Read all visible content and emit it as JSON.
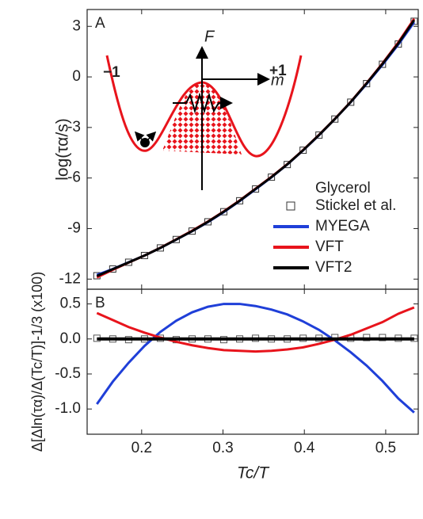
{
  "chart_data": [
    {
      "type": "line",
      "label": "A",
      "ylabel": "log(τα/s)",
      "xlim": [
        0.133,
        0.54
      ],
      "xticks": [
        0.2,
        0.3,
        0.4,
        0.5
      ],
      "ylim": [
        -12.6,
        4.0
      ],
      "yticks": [
        3,
        0,
        -3,
        -6,
        -9,
        -12
      ],
      "x": [
        0.145,
        0.1645,
        0.184,
        0.2035,
        0.223,
        0.2425,
        0.262,
        0.2815,
        0.301,
        0.3205,
        0.34,
        0.3595,
        0.379,
        0.3985,
        0.418,
        0.4375,
        0.457,
        0.4765,
        0.496,
        0.5155,
        0.535
      ],
      "legend_title": "Glycerol",
      "series": [
        {
          "name": "Stickel et al.",
          "marker": "square",
          "color": "#333333",
          "values": [
            -11.8,
            -11.4,
            -11.0,
            -10.6,
            -10.15,
            -9.65,
            -9.15,
            -8.6,
            -8.0,
            -7.35,
            -6.65,
            -5.95,
            -5.2,
            -4.35,
            -3.45,
            -2.5,
            -1.5,
            -0.4,
            0.75,
            1.95,
            3.3
          ]
        },
        {
          "name": "MYEGA",
          "color": "#1f3fd8",
          "values": [
            -11.75,
            -11.4,
            -11.0,
            -10.6,
            -10.15,
            -9.66,
            -9.16,
            -8.62,
            -8.02,
            -7.37,
            -6.67,
            -5.96,
            -5.2,
            -4.36,
            -3.46,
            -2.5,
            -1.5,
            -0.42,
            0.72,
            1.92,
            3.25
          ]
        },
        {
          "name": "VFT",
          "color": "#e8141c",
          "values": [
            -11.9,
            -11.45,
            -11.02,
            -10.6,
            -10.14,
            -9.64,
            -9.13,
            -8.58,
            -7.98,
            -7.33,
            -6.63,
            -5.93,
            -5.18,
            -4.34,
            -3.44,
            -2.49,
            -1.48,
            -0.37,
            0.8,
            2.05,
            3.45
          ]
        },
        {
          "name": "VFT2",
          "color": "#000000",
          "values": [
            -11.82,
            -11.41,
            -11.01,
            -10.6,
            -10.15,
            -9.65,
            -9.15,
            -8.6,
            -8.0,
            -7.35,
            -6.65,
            -5.95,
            -5.19,
            -4.35,
            -3.45,
            -2.5,
            -1.49,
            -0.39,
            0.77,
            1.99,
            3.37
          ]
        }
      ],
      "annotations": [
        "F",
        "m",
        "−1",
        "+1"
      ]
    },
    {
      "type": "line",
      "label": "B",
      "ylabel": "Δ[Δln(τα)/Δ(Tc/T)]-1/3 (x100)",
      "xlabel": "Tc/T",
      "xlim": [
        0.133,
        0.54
      ],
      "xticks": [
        0.2,
        0.3,
        0.4,
        0.5
      ],
      "ylim": [
        -1.36,
        0.71
      ],
      "yticks": [
        0.5,
        {
          "value": 0,
          "label": "0.0"
        },
        -0.5,
        {
          "value": -1,
          "label": "-1.0"
        }
      ],
      "x": [
        0.145,
        0.1645,
        0.184,
        0.2035,
        0.223,
        0.2425,
        0.262,
        0.2815,
        0.301,
        0.3205,
        0.34,
        0.3595,
        0.379,
        0.3985,
        0.418,
        0.4375,
        0.457,
        0.4765,
        0.496,
        0.5155,
        0.535
      ],
      "series": [
        {
          "marker": "square",
          "color": "#555555",
          "values": [
            0.01,
            0.0,
            -0.01,
            0.0,
            0.01,
            -0.01,
            0.0,
            0.0,
            -0.01,
            0.0,
            0.01,
            0.0,
            0.0,
            0.01,
            0.01,
            0.02,
            0.01,
            0.02,
            0.02,
            0.01,
            0.01
          ]
        },
        {
          "color": "#1f3fd8",
          "values": [
            -0.93,
            -0.61,
            -0.34,
            -0.1,
            0.1,
            0.26,
            0.38,
            0.46,
            0.5,
            0.5,
            0.47,
            0.42,
            0.35,
            0.25,
            0.13,
            -0.02,
            -0.19,
            -0.38,
            -0.6,
            -0.85,
            -1.05
          ]
        },
        {
          "color": "#e8141c",
          "values": [
            0.37,
            0.27,
            0.17,
            0.09,
            0.02,
            -0.04,
            -0.09,
            -0.13,
            -0.16,
            -0.17,
            -0.18,
            -0.17,
            -0.15,
            -0.12,
            -0.07,
            -0.01,
            0.06,
            0.15,
            0.24,
            0.36,
            0.45
          ]
        },
        {
          "color": "#000000",
          "width": 4,
          "values": [
            0,
            0,
            0,
            0,
            0,
            0,
            0,
            0,
            0,
            0,
            0,
            0,
            0,
            0,
            0,
            0,
            0,
            0,
            0,
            0,
            0
          ]
        }
      ]
    }
  ]
}
